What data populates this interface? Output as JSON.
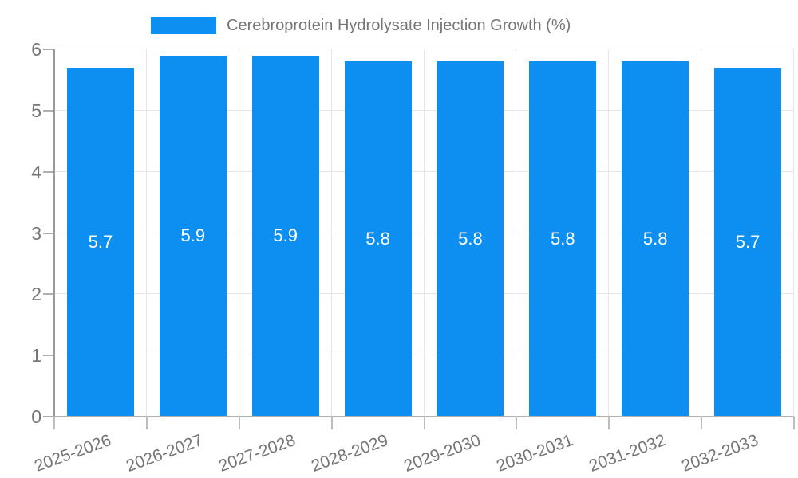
{
  "legend": {
    "label": "Cerebroprotein Hydrolysate Injection Growth (%)"
  },
  "colors": {
    "bar": "#0d8ff2",
    "axis_text": "#757575",
    "gridline": "#e6e6e6",
    "axis_line": "#b3b3b3",
    "y_axis_line": "#9a9a9a",
    "value_label": "#ffffff",
    "background": "#ffffff"
  },
  "chart_data": {
    "type": "bar",
    "title": "Cerebroprotein Hydrolysate Injection Growth (%)",
    "categories": [
      "2025-2026",
      "2026-2027",
      "2027-2028",
      "2028-2029",
      "2029-2030",
      "2030-2031",
      "2031-2032",
      "2032-2033"
    ],
    "values": [
      5.7,
      5.9,
      5.9,
      5.8,
      5.8,
      5.8,
      5.8,
      5.7
    ],
    "value_labels": [
      "5.7",
      "5.9",
      "5.9",
      "5.8",
      "5.8",
      "5.8",
      "5.8",
      "5.7"
    ],
    "xlabel": "",
    "ylabel": "",
    "ylim": [
      0,
      6
    ],
    "yticks": [
      0,
      1,
      2,
      3,
      4,
      5,
      6
    ],
    "grid": true,
    "legend_position": "top",
    "value_label_position": "center-inside",
    "x_label_rotation_deg": -20
  }
}
